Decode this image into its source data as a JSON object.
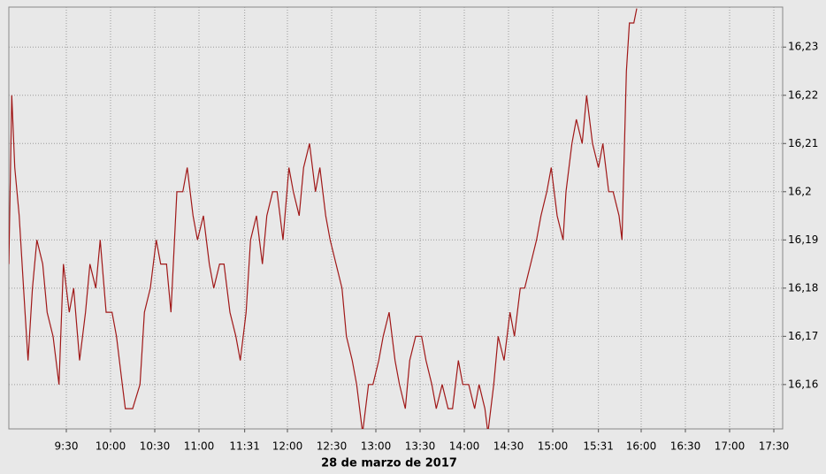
{
  "chart_data": {
    "type": "line",
    "xlabel": "28 de marzo de 2017",
    "x": [
      531,
      533,
      535,
      538,
      542,
      544,
      547,
      550,
      554,
      557,
      561,
      565,
      568,
      572,
      575,
      579,
      583,
      586,
      590,
      593,
      597,
      601,
      604,
      608,
      610,
      615,
      620,
      623,
      627,
      631,
      634,
      638,
      641,
      645,
      649,
      652,
      656,
      659,
      663,
      667,
      670,
      674,
      677,
      681,
      685,
      688,
      692,
      695,
      699,
      703,
      706,
      710,
      713,
      717,
      721,
      724,
      728,
      731,
      735,
      739,
      742,
      746,
      749,
      753,
      757,
      760,
      764,
      767,
      771,
      775,
      778,
      782,
      785,
      789,
      793,
      796,
      800,
      803,
      807,
      811,
      814,
      818,
      821,
      825,
      829,
      832,
      836,
      839,
      843,
      847,
      850,
      854,
      856,
      860,
      863,
      867,
      871,
      874,
      878,
      881,
      885,
      889,
      892,
      896,
      899,
      903,
      907,
      909,
      913,
      916,
      920,
      923,
      927,
      931,
      934,
      938,
      941,
      945,
      947,
      950,
      952,
      955,
      957
    ],
    "series": [
      {
        "color": "#a01818",
        "values": [
          16.185,
          16.22,
          16.205,
          16.195,
          16.175,
          16.165,
          16.18,
          16.19,
          16.185,
          16.175,
          16.17,
          16.16,
          16.185,
          16.175,
          16.18,
          16.165,
          16.175,
          16.185,
          16.18,
          16.19,
          16.175,
          16.175,
          16.17,
          16.16,
          16.155,
          16.155,
          16.16,
          16.175,
          16.18,
          16.19,
          16.185,
          16.185,
          16.175,
          16.2,
          16.2,
          16.205,
          16.195,
          16.19,
          16.195,
          16.185,
          16.18,
          16.185,
          16.185,
          16.175,
          16.17,
          16.165,
          16.175,
          16.19,
          16.195,
          16.185,
          16.195,
          16.2,
          16.2,
          16.19,
          16.205,
          16.2,
          16.195,
          16.205,
          16.21,
          16.2,
          16.205,
          16.195,
          16.19,
          16.185,
          16.18,
          16.17,
          16.165,
          16.16,
          16.15,
          16.16,
          16.16,
          16.165,
          16.17,
          16.175,
          16.165,
          16.16,
          16.155,
          16.165,
          16.17,
          16.17,
          16.165,
          16.16,
          16.155,
          16.16,
          16.155,
          16.155,
          16.165,
          16.16,
          16.16,
          16.155,
          16.16,
          16.155,
          16.15,
          16.16,
          16.17,
          16.165,
          16.175,
          16.17,
          16.18,
          16.18,
          16.185,
          16.19,
          16.195,
          16.2,
          16.205,
          16.195,
          16.19,
          16.2,
          16.21,
          16.215,
          16.21,
          16.22,
          16.21,
          16.205,
          16.21,
          16.2,
          16.2,
          16.195,
          16.19,
          16.225,
          16.235,
          16.235,
          16.238
        ]
      }
    ],
    "xlim": [
      531,
      1056
    ],
    "xticks": [
      {
        "value": 570,
        "label": "9:30"
      },
      {
        "value": 600,
        "label": "10:00"
      },
      {
        "value": 630,
        "label": "10:30"
      },
      {
        "value": 660,
        "label": "11:00"
      },
      {
        "value": 691,
        "label": "11:31"
      },
      {
        "value": 720,
        "label": "12:00"
      },
      {
        "value": 750,
        "label": "12:30"
      },
      {
        "value": 780,
        "label": "13:00"
      },
      {
        "value": 810,
        "label": "13:30"
      },
      {
        "value": 840,
        "label": "14:00"
      },
      {
        "value": 870,
        "label": "14:30"
      },
      {
        "value": 900,
        "label": "15:00"
      },
      {
        "value": 931,
        "label": "15:31"
      },
      {
        "value": 960,
        "label": "16:00"
      },
      {
        "value": 990,
        "label": "16:30"
      },
      {
        "value": 1020,
        "label": "17:00"
      },
      {
        "value": 1050,
        "label": "17:30"
      }
    ],
    "ylim": [
      16.1508,
      16.2383
    ],
    "yticks": [
      {
        "value": 16.16,
        "label": "16,16"
      },
      {
        "value": 16.17,
        "label": "16,17"
      },
      {
        "value": 16.18,
        "label": "16,18"
      },
      {
        "value": 16.19,
        "label": "16,19"
      },
      {
        "value": 16.2,
        "label": "16,2"
      },
      {
        "value": 16.21,
        "label": "16,21"
      },
      {
        "value": 16.22,
        "label": "16,22"
      },
      {
        "value": 16.23,
        "label": "16,23"
      }
    ],
    "grid": true
  }
}
